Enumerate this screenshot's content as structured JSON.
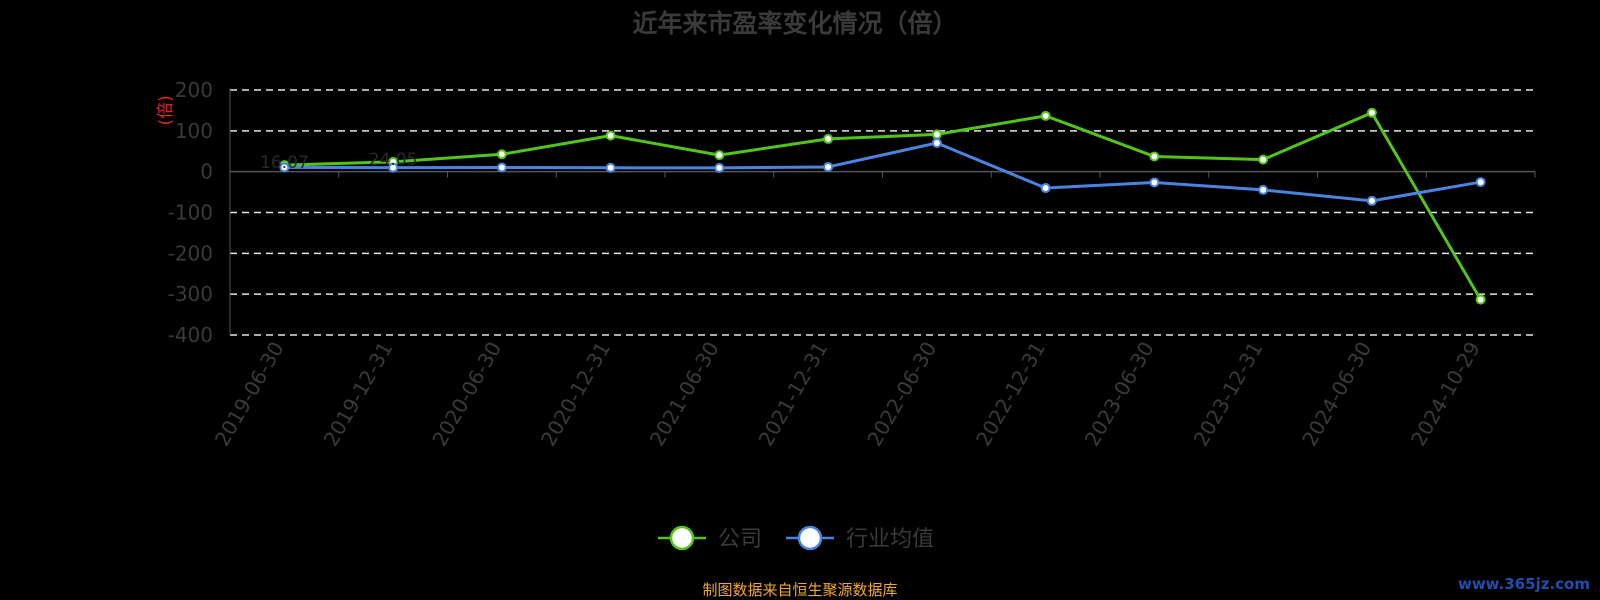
{
  "chart_data": {
    "type": "line",
    "title": "近年来市盈率变化情况（倍）",
    "unit_label": "(倍)",
    "categories": [
      "2019-06-30",
      "2019-12-31",
      "2020-06-30",
      "2020-12-31",
      "2021-06-30",
      "2021-12-31",
      "2022-06-30",
      "2022-12-31",
      "2023-06-30",
      "2023-12-31",
      "2024-06-30",
      "2024-10-29"
    ],
    "ylim": [
      -400,
      200
    ],
    "yticks": [
      "200",
      "100",
      "0",
      "-100",
      "-200",
      "-300",
      "-400"
    ],
    "grid": true,
    "legend_position": "bottom",
    "series": [
      {
        "name": "公司",
        "color": "#52c41a",
        "values": [
          16.07,
          24.05,
          42.6,
          88.3,
          40.5,
          80.2,
          91.3,
          136.7,
          37.2,
          29.5,
          144.2,
          -313.3
        ],
        "labels": [
          "16.07",
          "24.05",
          "",
          "",
          "",
          "",
          "",
          "",
          "",
          "",
          "",
          ""
        ]
      },
      {
        "name": "行业均值",
        "color": "#4a84e0",
        "values": [
          10.5,
          9.8,
          10.2,
          9.5,
          9.2,
          11.5,
          70.3,
          -40.1,
          -26.4,
          -44.7,
          -71.6,
          -25.5
        ]
      }
    ]
  },
  "footer": {
    "source": "制图数据来自恒生聚源数据库",
    "watermark": "www.365jz.com"
  }
}
